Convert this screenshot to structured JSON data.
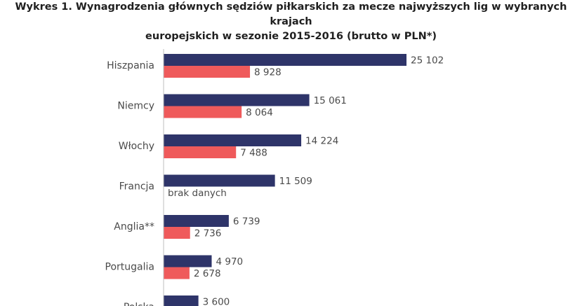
{
  "chart_data": {
    "type": "bar",
    "orientation": "horizontal",
    "title_line1": "Wykres 1. Wynagrodzenia głównych sędziów piłkarskich za mecze najwyższych lig w wybranych krajach",
    "title_line2": "europejskich w sezonie 2015-2016 (brutto w PLN*)",
    "categories": [
      "Hiszpania",
      "Niemcy",
      "Włochy",
      "Francja",
      "Anglia**",
      "Portugalia",
      "Polska"
    ],
    "series": [
      {
        "values": [
          25102,
          15061,
          14224,
          11509,
          6739,
          4970,
          3600
        ],
        "labels": [
          "25 102",
          "15 061",
          "14 224",
          "11 509",
          "6 739",
          "4 970",
          "3 600"
        ],
        "color": "#2e3469"
      },
      {
        "values": [
          8928,
          8064,
          7488,
          null,
          2736,
          2678,
          null
        ],
        "labels": [
          "8 928",
          "8 064",
          "7 488",
          "brak danych",
          "2 736",
          "2 678",
          ""
        ],
        "color": "#ef5a5b"
      }
    ],
    "xlim": [
      0,
      25102
    ],
    "grid": false,
    "legend": "none"
  }
}
